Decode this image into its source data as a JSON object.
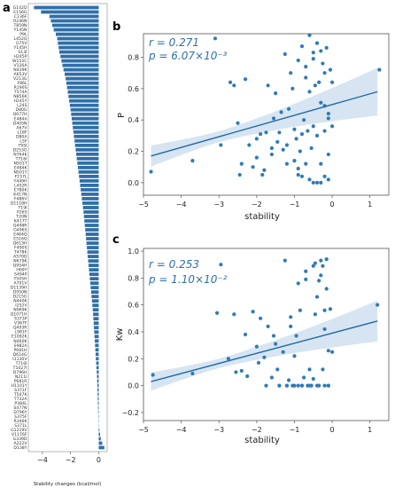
{
  "panels": {
    "a": "a",
    "b": "b",
    "c": "c"
  },
  "colors": {
    "bar": "#2f6fa8",
    "point": "#2f7bb8",
    "line": "#1f6aa8",
    "band": "#c9dcee",
    "annotation": "#2f6fa8"
  },
  "chart_data": [
    {
      "type": "bar",
      "orientation": "horizontal",
      "xlabel": "Stability changes (kcal/mol)",
      "xlim": [
        -5,
        0.6
      ],
      "xticks": [
        -4,
        -2,
        0
      ],
      "categories": [
        "G142D",
        "E156G",
        "C136F",
        "R246N",
        "T859N",
        "Y145N",
        "P9L",
        "L452Q",
        "G75V",
        "Y145H",
        "S13I",
        "H245P",
        "W152C",
        "V126A",
        "N439K",
        "A653V",
        "V213G",
        "F86L",
        "R190S",
        "T574A",
        "N856K",
        "H245Y",
        "L24S",
        "D80G",
        "Q677H",
        "E484A",
        "D405N",
        "A67V",
        "L18F",
        "D80A",
        "L5F",
        "T95I",
        "D253G",
        "N764K",
        "T716I",
        "N501T",
        "E484K",
        "N501Y",
        "F157L",
        "Y449H",
        "L452R",
        "E780K",
        "K417N",
        "F486V",
        "D1118H",
        "T19I",
        "P26S",
        "T20N",
        "K417T",
        "Q498R",
        "G496S",
        "E484Q",
        "E516Q",
        "Q613H",
        "F490S",
        "T478K",
        "A570D",
        "N679K",
        "Q954H",
        "H69Y",
        "S494P",
        "Y505H",
        "A701V",
        "D1139H",
        "D950N",
        "D215G",
        "N440K",
        "I252V",
        "N969K",
        "Q1071H",
        "S373P",
        "V367F",
        "Q493R",
        "L981F",
        "E1092K",
        "N460K",
        "S982A",
        "P681H",
        "D614G",
        "I1130V",
        "T716I",
        "T1027I",
        "D796H",
        "N211I",
        "P681R",
        "H1101Y",
        "S371F",
        "T547K",
        "T732A",
        "P384L",
        "S477N",
        "D796Y",
        "S375F",
        "R346K",
        "S371L",
        "G1219V",
        "V1176F",
        "G339D",
        "A222V",
        "D138Y"
      ],
      "values": [
        -4.6,
        -4.1,
        -3.5,
        -3.4,
        -3.3,
        -3.2,
        -3.05,
        -2.95,
        -2.9,
        -2.85,
        -2.8,
        -2.72,
        -2.65,
        -2.58,
        -2.5,
        -2.42,
        -2.35,
        -2.3,
        -2.25,
        -2.2,
        -2.15,
        -2.1,
        -2.05,
        -2.0,
        -1.96,
        -1.92,
        -1.88,
        -1.84,
        -1.8,
        -1.76,
        -1.72,
        -1.68,
        -1.64,
        -1.6,
        -1.56,
        -1.52,
        -1.48,
        -1.44,
        -1.4,
        -1.36,
        -1.32,
        -1.28,
        -1.24,
        -1.2,
        -1.16,
        -1.12,
        -1.08,
        -1.05,
        -1.02,
        -0.99,
        -0.96,
        -0.93,
        -0.9,
        -0.87,
        -0.84,
        -0.81,
        -0.78,
        -0.75,
        -0.72,
        -0.69,
        -0.66,
        -0.63,
        -0.6,
        -0.57,
        -0.54,
        -0.51,
        -0.48,
        -0.45,
        -0.42,
        -0.4,
        -0.38,
        -0.36,
        -0.34,
        -0.32,
        -0.3,
        -0.28,
        -0.26,
        -0.24,
        -0.22,
        -0.2,
        -0.18,
        -0.16,
        -0.14,
        -0.12,
        -0.11,
        -0.1,
        -0.09,
        -0.08,
        -0.07,
        -0.06,
        -0.05,
        -0.04,
        -0.03,
        -0.02,
        -0.01,
        0.05,
        0.1,
        0.15,
        0.25,
        0.4
      ]
    },
    {
      "type": "scatter",
      "xlabel": "stability",
      "ylabel": "P",
      "xlim": [
        -5,
        1.5
      ],
      "ylim": [
        -0.08,
        0.95
      ],
      "xticks": [
        -5,
        -4,
        -3,
        -2,
        -1,
        0,
        1
      ],
      "yticks": [
        0.0,
        0.2,
        0.4,
        0.6,
        0.8
      ],
      "annotation": [
        "r = 0.271",
        "p = 6.07×10⁻³"
      ],
      "regression": {
        "x0": -4.8,
        "y0": 0.17,
        "x1": 1.2,
        "y1": 0.58
      },
      "x": [
        -4.8,
        -3.7,
        -3.1,
        -2.95,
        -2.7,
        -2.6,
        -2.5,
        -2.45,
        -2.4,
        -2.3,
        -2.2,
        -2.1,
        -2.0,
        -1.9,
        -1.85,
        -1.8,
        -1.75,
        -1.7,
        -1.6,
        -1.55,
        -1.5,
        -1.45,
        -1.4,
        -1.35,
        -1.3,
        -1.25,
        -1.2,
        -1.15,
        -1.1,
        -1.05,
        -1.0,
        -1.0,
        -0.95,
        -0.9,
        -0.9,
        -0.85,
        -0.8,
        -0.8,
        -0.75,
        -0.7,
        -0.7,
        -0.65,
        -0.6,
        -0.6,
        -0.55,
        -0.5,
        -0.5,
        -0.45,
        -0.4,
        -0.4,
        -0.35,
        -0.3,
        -0.3,
        -0.25,
        -0.2,
        -0.2,
        -0.15,
        -0.1,
        -0.1,
        -0.05,
        0.0,
        0.0,
        -0.3,
        -0.2,
        -0.1,
        -0.4,
        -0.5,
        -0.6,
        -0.8,
        -0.9,
        -1.2,
        -1.6,
        -2.0,
        -0.2,
        -0.1,
        -0.3,
        -0.5,
        -0.7,
        1.25
      ],
      "y": [
        0.07,
        0.14,
        0.92,
        0.24,
        0.64,
        0.62,
        0.38,
        0.05,
        0.12,
        0.66,
        0.24,
        0.1,
        0.16,
        0.31,
        0.05,
        0.08,
        0.32,
        0.62,
        0.18,
        0.41,
        0.57,
        0.26,
        0.32,
        0.45,
        0.21,
        0.82,
        0.24,
        0.47,
        0.7,
        0.6,
        0.34,
        0.14,
        0.28,
        0.78,
        0.05,
        0.2,
        0.87,
        0.31,
        0.4,
        0.74,
        0.12,
        0.33,
        0.94,
        0.58,
        0.22,
        0.83,
        0.36,
        0.62,
        0.89,
        0.3,
        0.64,
        0.51,
        0.12,
        0.76,
        0.7,
        0.33,
        0.86,
        0.41,
        0.18,
        0.72,
        0.64,
        0.36,
        0.0,
        0.04,
        0.02,
        0.0,
        0.0,
        0.02,
        0.04,
        0.09,
        0.12,
        0.22,
        0.28,
        0.49,
        0.44,
        0.84,
        0.79,
        0.67,
        0.72
      ]
    },
    {
      "type": "scatter",
      "xlabel": "stability",
      "ylabel": "Kw",
      "xlim": [
        -5,
        1.5
      ],
      "ylim": [
        -0.26,
        1.02
      ],
      "xticks": [
        -5,
        -4,
        -3,
        -2,
        -1,
        0,
        1
      ],
      "yticks": [
        -0.2,
        0.0,
        0.2,
        0.4,
        0.6,
        0.8,
        1.0
      ],
      "annotation": [
        "r = 0.253",
        "p = 1.10×10⁻²"
      ],
      "regression": {
        "x0": -4.8,
        "y0": 0.03,
        "x1": 1.2,
        "y1": 0.48
      },
      "x": [
        -4.75,
        -3.7,
        -3.05,
        -2.95,
        -2.75,
        -2.6,
        -2.55,
        -2.4,
        -2.3,
        -2.25,
        -2.1,
        -2.0,
        -1.95,
        -1.9,
        -1.8,
        -1.75,
        -1.7,
        -1.6,
        -1.55,
        -1.5,
        -1.45,
        -1.4,
        -1.3,
        -1.25,
        -1.2,
        -1.15,
        -1.1,
        -1.05,
        -1.0,
        -0.95,
        -0.9,
        -0.85,
        -0.8,
        -0.75,
        -0.7,
        -0.65,
        -0.6,
        -0.55,
        -0.5,
        -0.45,
        -0.4,
        -0.35,
        -0.3,
        -0.25,
        -0.2,
        -0.15,
        -0.1,
        -0.05,
        0.0,
        -1.4,
        -1.2,
        -1.0,
        -0.8,
        -0.6,
        -0.4,
        -0.2,
        -0.1,
        -0.3,
        -0.5,
        -0.7,
        -0.9,
        -1.1,
        -0.25,
        -0.15,
        -0.35,
        -0.45,
        -0.2,
        -0.1,
        1.2
      ],
      "y": [
        0.08,
        0.09,
        0.54,
        0.9,
        0.2,
        0.53,
        0.1,
        0.11,
        0.38,
        0.07,
        0.55,
        0.29,
        0.17,
        0.5,
        0.21,
        0.0,
        0.44,
        0.06,
        0.37,
        0.31,
        0.12,
        0.0,
        0.25,
        0.93,
        0.0,
        0.04,
        0.51,
        0.0,
        0.22,
        0.37,
        0.0,
        0.56,
        0.0,
        0.06,
        0.85,
        0.0,
        0.12,
        0.0,
        0.05,
        0.91,
        0.66,
        0.0,
        0.82,
        0.12,
        0.42,
        0.72,
        0.0,
        0.57,
        0.25,
        0.0,
        0.0,
        0.0,
        0.0,
        0.0,
        0.0,
        0.0,
        0.0,
        0.93,
        0.89,
        0.79,
        0.76,
        0.44,
        0.89,
        0.94,
        0.78,
        0.53,
        0.56,
        0.26,
        0.6
      ]
    }
  ]
}
